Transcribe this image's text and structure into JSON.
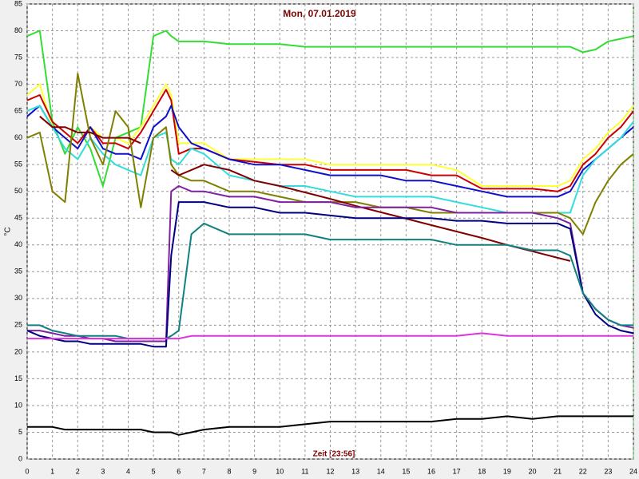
{
  "chart_data": {
    "type": "line",
    "title": "Mon, 07.01.2019",
    "y_label": "°C",
    "x_label": "Zeit [23:56]",
    "x": [
      0,
      0.5,
      1,
      1.5,
      2,
      2.5,
      3,
      3.5,
      4,
      4.5,
      5,
      5.5,
      5.7,
      6,
      6.5,
      7,
      8,
      9,
      10,
      11,
      12,
      13,
      14,
      15,
      16,
      17,
      18,
      19,
      20,
      21,
      21.5,
      22,
      22.5,
      23,
      23.5,
      24
    ],
    "xlim": [
      0,
      24
    ],
    "xticks": [
      0,
      1,
      2,
      3,
      4,
      5,
      6,
      7,
      8,
      9,
      10,
      11,
      12,
      13,
      14,
      15,
      16,
      17,
      18,
      19,
      20,
      21,
      22,
      23,
      24
    ],
    "ylim": [
      0,
      85
    ],
    "yticks": [
      0,
      5,
      10,
      15,
      20,
      25,
      30,
      35,
      40,
      45,
      50,
      55,
      60,
      65,
      70,
      75,
      80,
      85
    ],
    "grid": true,
    "series": [
      {
        "color": "#33dd33",
        "values": [
          79,
          80,
          63,
          57,
          62,
          58,
          51,
          60,
          61,
          62,
          79,
          80,
          79,
          78,
          78,
          78,
          77.5,
          77.5,
          77.5,
          77,
          77,
          77,
          77,
          77,
          77,
          77,
          77,
          77,
          77,
          77,
          77,
          76,
          76.5,
          78,
          78.5,
          79
        ]
      },
      {
        "color": "#ffff33",
        "values": [
          68,
          70,
          62,
          60,
          58,
          62,
          60,
          60,
          59,
          62,
          66,
          70,
          68,
          59,
          59,
          59,
          56,
          56,
          56,
          56,
          55,
          55,
          55,
          55,
          55,
          54,
          51,
          51,
          51,
          51,
          52,
          56,
          58,
          61,
          63,
          66
        ]
      },
      {
        "color": "#cc0000",
        "values": [
          67,
          68,
          63,
          61,
          59,
          62,
          59,
          59,
          58,
          61,
          65,
          69,
          67,
          57,
          58,
          58,
          56,
          55.5,
          55,
          55,
          54,
          54,
          54,
          54,
          53,
          53,
          50.5,
          50.5,
          50.5,
          50,
          51,
          55,
          57,
          60,
          62,
          65
        ]
      },
      {
        "color": "#1010cc",
        "values": [
          64,
          66,
          62,
          60,
          58,
          62,
          58,
          57,
          57,
          56,
          62,
          64,
          66,
          62,
          59,
          58,
          56,
          55,
          55,
          54,
          53,
          53,
          53,
          52,
          52,
          51,
          50,
          49,
          49,
          49,
          50,
          54,
          56,
          58,
          60,
          62
        ]
      },
      {
        "color": "#33dddd",
        "values": [
          65,
          66,
          62,
          58,
          56,
          60,
          57,
          55,
          54,
          53,
          60,
          61,
          56,
          55,
          58,
          57,
          53,
          52,
          51,
          51,
          50,
          49,
          49,
          49,
          49,
          48,
          47,
          46,
          46,
          46,
          46,
          53,
          56,
          58,
          60,
          63
        ]
      },
      {
        "color": "#808000",
        "values": [
          60,
          61,
          50,
          48,
          72,
          60,
          55,
          65,
          62,
          47,
          60,
          62,
          55,
          53,
          52,
          52,
          50,
          50,
          49,
          48,
          48,
          48,
          47,
          47,
          46,
          46,
          46,
          46,
          46,
          46,
          45,
          42,
          48,
          52,
          55,
          57
        ]
      },
      {
        "color": "#800000",
        "values": [
          null,
          64,
          62,
          62,
          61,
          61,
          60,
          60,
          60,
          59,
          null,
          null,
          54,
          53,
          54,
          55,
          54,
          52,
          51,
          49.8,
          48.6,
          47.3,
          46.1,
          44.9,
          43.7,
          42.5,
          41.3,
          40,
          38.8,
          37.6,
          37,
          null,
          null,
          null,
          null,
          null
        ]
      },
      {
        "color": "#8020a0",
        "values": [
          24,
          24,
          23.5,
          23,
          23,
          22.5,
          22.5,
          22,
          22,
          22,
          22,
          22,
          50,
          51,
          50,
          50,
          49,
          49,
          48,
          48,
          48,
          47,
          47,
          47,
          47,
          46,
          46,
          46,
          46,
          45,
          44,
          31,
          28,
          26,
          25,
          24.5
        ]
      },
      {
        "color": "#000080",
        "values": [
          24,
          23,
          22.5,
          22,
          22,
          21.5,
          21.5,
          21.5,
          21.5,
          21.5,
          21,
          21,
          38,
          48,
          48,
          48,
          47,
          47,
          46,
          46,
          45.5,
          45,
          45,
          45,
          45,
          44.5,
          44.5,
          44,
          44,
          44,
          43,
          31,
          27,
          25,
          24,
          23.5
        ]
      },
      {
        "color": "#108080",
        "values": [
          25,
          25,
          24,
          23.5,
          23,
          23,
          23,
          23,
          22.5,
          22.5,
          22.5,
          22.5,
          23,
          24,
          42,
          44,
          42,
          42,
          42,
          42,
          41,
          41,
          41,
          41,
          41,
          40,
          40,
          40,
          39,
          39,
          38,
          31,
          28,
          26,
          25,
          25
        ]
      },
      {
        "color": "#dd33dd",
        "values": [
          22.5,
          22.5,
          22.5,
          22.5,
          22.5,
          22.5,
          22.5,
          22.5,
          22.5,
          22.5,
          22.5,
          22.5,
          22.5,
          22.5,
          23,
          23,
          23,
          23,
          23,
          23,
          23,
          23,
          23,
          23,
          23,
          23,
          23.5,
          23,
          23,
          23,
          23,
          23,
          23,
          23,
          23,
          23
        ]
      },
      {
        "color": "#000000",
        "values": [
          6,
          6,
          6,
          5.5,
          5.5,
          5.5,
          5.5,
          5.5,
          5.5,
          5.5,
          5,
          5,
          5,
          4.5,
          5,
          5.5,
          6,
          6,
          6,
          6.5,
          7,
          7,
          7,
          7,
          7,
          7.5,
          7.5,
          8,
          7.5,
          8,
          8,
          8,
          8,
          8,
          8,
          8
        ]
      }
    ]
  }
}
